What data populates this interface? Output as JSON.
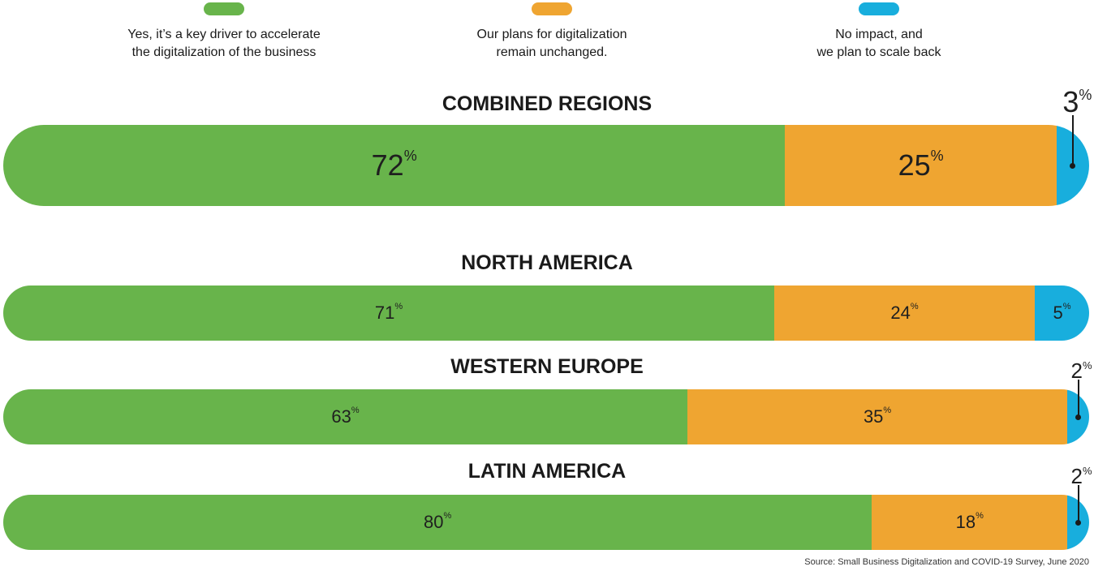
{
  "legend": [
    {
      "text": "Yes, it’s a key driver to accelerate\nthe digitalization of the business",
      "color": "#68B44B"
    },
    {
      "text": "Our plans for digitalization\nremain unchanged.",
      "color": "#EFA531"
    },
    {
      "text": "No impact, and\nwe plan to scale back",
      "color": "#18AEDD"
    }
  ],
  "percent_sign": "%",
  "source": "Source: Small Business Digitalization and COVID-19 Survey, June 2020",
  "chart_data": {
    "type": "bar",
    "orientation": "horizontal-stacked-100",
    "categories": [
      "COMBINED REGIONS",
      "NORTH AMERICA",
      "WESTERN EUROPE",
      "LATIN AMERICA"
    ],
    "series": [
      {
        "name": "Yes, it’s a key driver to accelerate the digitalization of the business",
        "values": [
          72,
          71,
          63,
          80
        ]
      },
      {
        "name": "Our plans for digitalization remain unchanged.",
        "values": [
          25,
          24,
          35,
          18
        ]
      },
      {
        "name": "No impact, and we plan to scale back",
        "values": [
          3,
          5,
          2,
          2
        ]
      }
    ],
    "unit": "%",
    "legend_position": "top"
  }
}
